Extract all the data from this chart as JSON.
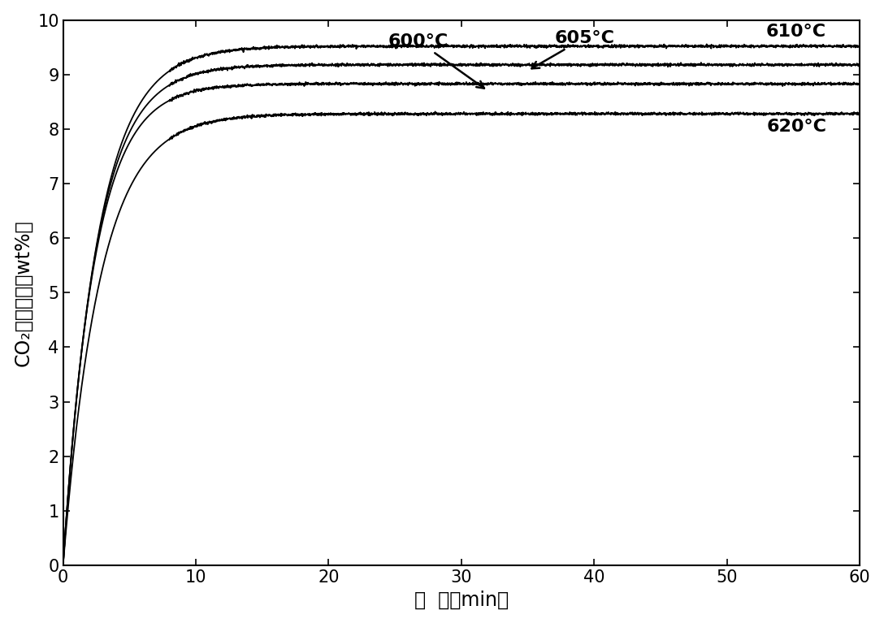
{
  "xlabel_cn": "时  间（min）",
  "ylabel_cn": "CO₂质量分数（wt%）",
  "xlim": [
    0,
    60
  ],
  "ylim": [
    0,
    10
  ],
  "xticks": [
    0,
    10,
    20,
    30,
    40,
    50,
    60
  ],
  "yticks": [
    0,
    1,
    2,
    3,
    4,
    5,
    6,
    7,
    8,
    9,
    10
  ],
  "curve_params": [
    {
      "label": "610°C",
      "sat": 9.52,
      "k": 0.38,
      "color": "#000000",
      "lw": 1.3
    },
    {
      "label": "605°C",
      "sat": 9.18,
      "k": 0.4,
      "color": "#000000",
      "lw": 1.3
    },
    {
      "label": "600°C",
      "sat": 8.83,
      "k": 0.42,
      "color": "#000000",
      "lw": 1.3
    },
    {
      "label": "620°C",
      "sat": 8.28,
      "k": 0.36,
      "color": "#000000",
      "lw": 1.3
    }
  ],
  "bg_color": "#ffffff",
  "tick_fontsize": 15,
  "label_fontsize": 17,
  "annot_fontsize": 16
}
